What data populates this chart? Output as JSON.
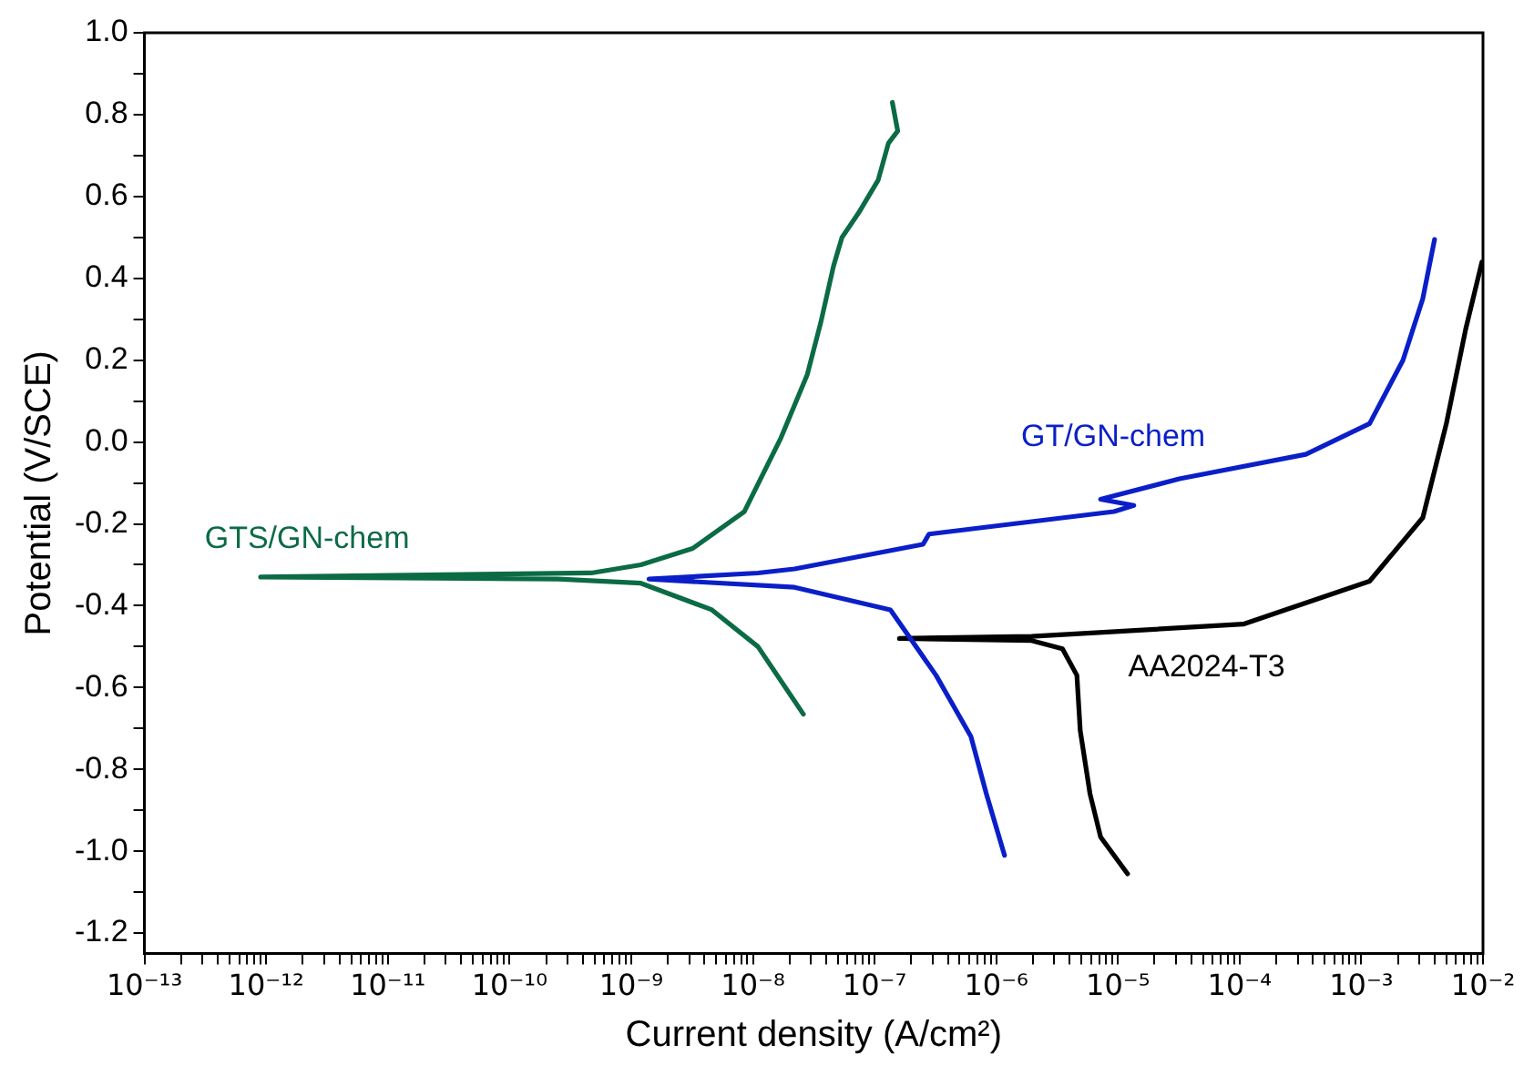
{
  "chart_data": {
    "type": "line",
    "xlabel": "Current density (A/cm²)",
    "ylabel": "Potential (V/SCE)",
    "log": "x",
    "xlim": [
      1e-13,
      0.01
    ],
    "xticks": [
      {
        "value": 1e-13,
        "label": "10⁻¹³"
      },
      {
        "value": 2e-13,
        "label": null
      },
      {
        "value": 3e-13,
        "label": null
      },
      {
        "value": 4e-13,
        "label": null
      },
      {
        "value": 5e-13,
        "label": null
      },
      {
        "value": 6e-13,
        "label": null
      },
      {
        "value": 7e-13,
        "label": null
      },
      {
        "value": 8e-13,
        "label": null
      },
      {
        "value": 9e-13,
        "label": null
      },
      {
        "value": 1e-12,
        "label": "10⁻¹²"
      },
      {
        "value": 2e-12,
        "label": null
      },
      {
        "value": 3e-12,
        "label": null
      },
      {
        "value": 4e-12,
        "label": null
      },
      {
        "value": 5e-12,
        "label": null
      },
      {
        "value": 6e-12,
        "label": null
      },
      {
        "value": 7e-12,
        "label": null
      },
      {
        "value": 8e-12,
        "label": null
      },
      {
        "value": 9e-12,
        "label": null
      },
      {
        "value": 1e-11,
        "label": "10⁻¹¹"
      },
      {
        "value": 2e-11,
        "label": null
      },
      {
        "value": 3e-11,
        "label": null
      },
      {
        "value": 4e-11,
        "label": null
      },
      {
        "value": 5e-11,
        "label": null
      },
      {
        "value": 6e-11,
        "label": null
      },
      {
        "value": 7e-11,
        "label": null
      },
      {
        "value": 8e-11,
        "label": null
      },
      {
        "value": 9e-11,
        "label": null
      },
      {
        "value": 1e-10,
        "label": "10⁻¹⁰"
      },
      {
        "value": 2e-10,
        "label": null
      },
      {
        "value": 3e-10,
        "label": null
      },
      {
        "value": 4e-10,
        "label": null
      },
      {
        "value": 5e-10,
        "label": null
      },
      {
        "value": 6e-10,
        "label": null
      },
      {
        "value": 7e-10,
        "label": null
      },
      {
        "value": 8e-10,
        "label": null
      },
      {
        "value": 9e-10,
        "label": null
      },
      {
        "value": 1e-09,
        "label": "10⁻⁹"
      },
      {
        "value": 2e-09,
        "label": null
      },
      {
        "value": 3e-09,
        "label": null
      },
      {
        "value": 4e-09,
        "label": null
      },
      {
        "value": 5e-09,
        "label": null
      },
      {
        "value": 6e-09,
        "label": null
      },
      {
        "value": 7e-09,
        "label": null
      },
      {
        "value": 8e-09,
        "label": null
      },
      {
        "value": 9e-09,
        "label": null
      },
      {
        "value": 1e-08,
        "label": "10⁻⁸"
      },
      {
        "value": 2e-08,
        "label": null
      },
      {
        "value": 3e-08,
        "label": null
      },
      {
        "value": 4e-08,
        "label": null
      },
      {
        "value": 5e-08,
        "label": null
      },
      {
        "value": 6e-08,
        "label": null
      },
      {
        "value": 7e-08,
        "label": null
      },
      {
        "value": 8e-08,
        "label": null
      },
      {
        "value": 9e-08,
        "label": null
      },
      {
        "value": 1e-07,
        "label": "10⁻⁷"
      },
      {
        "value": 2e-07,
        "label": null
      },
      {
        "value": 3e-07,
        "label": null
      },
      {
        "value": 4e-07,
        "label": null
      },
      {
        "value": 5e-07,
        "label": null
      },
      {
        "value": 6e-07,
        "label": null
      },
      {
        "value": 7e-07,
        "label": null
      },
      {
        "value": 8e-07,
        "label": null
      },
      {
        "value": 9e-07,
        "label": null
      },
      {
        "value": 1e-06,
        "label": "10⁻⁶"
      },
      {
        "value": 2e-06,
        "label": null
      },
      {
        "value": 3e-06,
        "label": null
      },
      {
        "value": 4e-06,
        "label": null
      },
      {
        "value": 5e-06,
        "label": null
      },
      {
        "value": 6e-06,
        "label": null
      },
      {
        "value": 7e-06,
        "label": null
      },
      {
        "value": 8e-06,
        "label": null
      },
      {
        "value": 9e-06,
        "label": null
      },
      {
        "value": 1e-05,
        "label": "10⁻⁵"
      },
      {
        "value": 2e-05,
        "label": null
      },
      {
        "value": 3e-05,
        "label": null
      },
      {
        "value": 4e-05,
        "label": null
      },
      {
        "value": 5e-05,
        "label": null
      },
      {
        "value": 6e-05,
        "label": null
      },
      {
        "value": 7e-05,
        "label": null
      },
      {
        "value": 8e-05,
        "label": null
      },
      {
        "value": 9e-05,
        "label": null
      },
      {
        "value": 0.0001,
        "label": "10⁻⁴"
      },
      {
        "value": 0.0002,
        "label": null
      },
      {
        "value": 0.0003,
        "label": null
      },
      {
        "value": 0.0004,
        "label": null
      },
      {
        "value": 0.0005,
        "label": null
      },
      {
        "value": 0.0006,
        "label": null
      },
      {
        "value": 0.0007,
        "label": null
      },
      {
        "value": 0.0008,
        "label": null
      },
      {
        "value": 0.0009,
        "label": null
      },
      {
        "value": 0.001,
        "label": "10⁻³"
      },
      {
        "value": 0.002,
        "label": null
      },
      {
        "value": 0.003,
        "label": null
      },
      {
        "value": 0.004,
        "label": null
      },
      {
        "value": 0.005,
        "label": null
      },
      {
        "value": 0.006,
        "label": null
      },
      {
        "value": 0.007,
        "label": null
      },
      {
        "value": 0.008,
        "label": null
      },
      {
        "value": 0.009,
        "label": null
      },
      {
        "value": 0.01,
        "label": "10⁻²"
      }
    ],
    "ylim": [
      -1.25,
      1.0
    ],
    "yticks": [
      {
        "value": -1.2,
        "label": "-1.2"
      },
      {
        "value": -1.1,
        "label": null
      },
      {
        "value": -1.0,
        "label": "-1.0"
      },
      {
        "value": -0.9,
        "label": null
      },
      {
        "value": -0.8,
        "label": "-0.8"
      },
      {
        "value": -0.7,
        "label": null
      },
      {
        "value": -0.6,
        "label": "-0.6"
      },
      {
        "value": -0.5,
        "label": null
      },
      {
        "value": -0.4,
        "label": "-0.4"
      },
      {
        "value": -0.3,
        "label": null
      },
      {
        "value": -0.2,
        "label": "-0.2"
      },
      {
        "value": -0.1,
        "label": null
      },
      {
        "value": 0,
        "label": "0.0"
      },
      {
        "value": 0.1,
        "label": null
      },
      {
        "value": 0.2,
        "label": "0.2"
      },
      {
        "value": 0.3,
        "label": null
      },
      {
        "value": 0.4,
        "label": "0.4"
      },
      {
        "value": 0.5,
        "label": null
      },
      {
        "value": 0.6,
        "label": "0.6"
      },
      {
        "value": 0.7,
        "label": null
      },
      {
        "value": 0.8,
        "label": "0.8"
      },
      {
        "value": 0.9,
        "label": null
      },
      {
        "value": 1.0,
        "label": "1.0"
      }
    ],
    "grid": false,
    "legend": false,
    "marker": "none",
    "line_style": "solid",
    "series": [
      {
        "name": "GTS/GN-chem",
        "color": "#0b6b45",
        "x": [
          2.6e-08,
          1.1e-08,
          4.6e-09,
          1.2e-09,
          2.5e-10,
          9e-13,
          4.7e-10,
          1.2e-09,
          3.2e-09,
          8.5e-09,
          1.7e-08,
          2.8e-08,
          3.6e-08,
          4.6e-08,
          5.4e-08,
          7.4e-08,
          1.07e-07,
          1.3e-07,
          1.55e-07,
          1.4e-07
        ],
        "values": [
          -0.665,
          -0.5,
          -0.41,
          -0.345,
          -0.335,
          -0.33,
          -0.32,
          -0.3,
          -0.26,
          -0.17,
          0.01,
          0.165,
          0.29,
          0.43,
          0.5,
          0.56,
          0.64,
          0.73,
          0.76,
          0.83
        ]
      },
      {
        "name": "GT/GN-chem",
        "color": "#0a1fc8",
        "x": [
          1.17e-06,
          8.3e-07,
          6.2e-07,
          3.2e-07,
          1.35e-07,
          2.2e-08,
          1.4e-09,
          1.1e-08,
          2.2e-08,
          2.5e-07,
          2.8e-07,
          9.3e-06,
          1.35e-05,
          7.2e-06,
          3.2e-05,
          0.00035,
          0.00117,
          0.0022,
          0.0032,
          0.004
        ],
        "values": [
          -1.01,
          -0.86,
          -0.72,
          -0.57,
          -0.41,
          -0.355,
          -0.335,
          -0.32,
          -0.31,
          -0.25,
          -0.225,
          -0.17,
          -0.155,
          -0.14,
          -0.09,
          -0.03,
          0.045,
          0.2,
          0.35,
          0.495
        ]
      },
      {
        "name": "AA2024-T3",
        "color": "#000000",
        "x": [
          1.2e-05,
          7.2e-06,
          5.9e-06,
          4.9e-06,
          4.6e-06,
          3.5e-06,
          1.95e-06,
          1.6e-07,
          1.95e-06,
          0.000107,
          0.00117,
          0.0032,
          0.005,
          0.0072,
          0.0098
        ],
        "values": [
          -1.055,
          -0.965,
          -0.86,
          -0.705,
          -0.57,
          -0.505,
          -0.485,
          -0.48,
          -0.475,
          -0.445,
          -0.34,
          -0.185,
          0.045,
          0.275,
          0.44
        ]
      }
    ]
  }
}
